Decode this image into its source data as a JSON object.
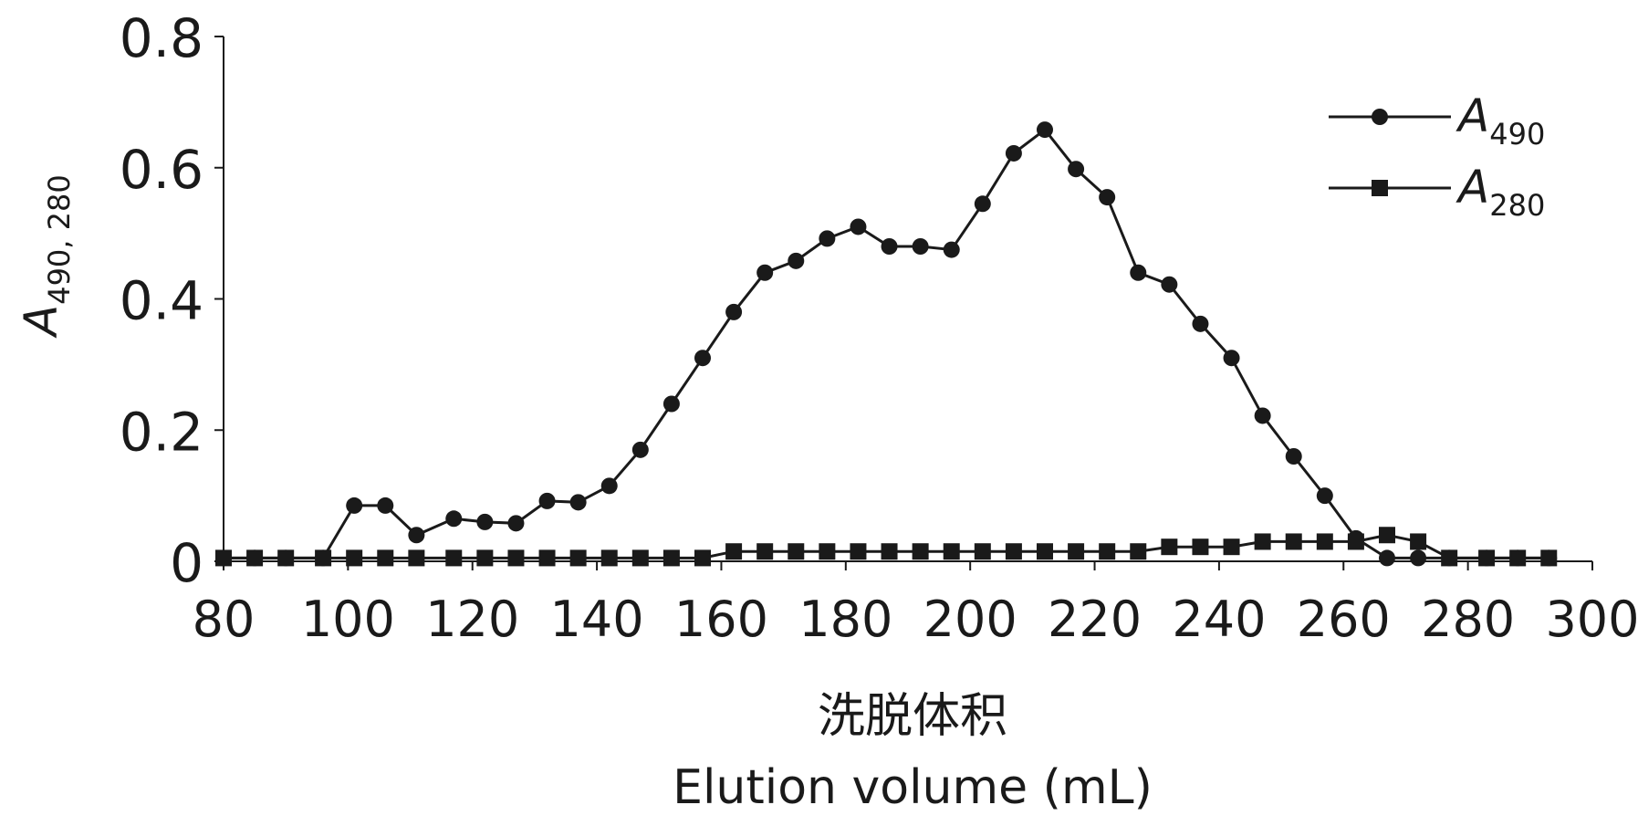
{
  "chart_data": {
    "type": "line",
    "title": "",
    "ylabel": {
      "main": "A",
      "sub": "490, 280"
    },
    "xlabel_cn": "洗脱体积",
    "xlabel_en": "Elution volume (mL)",
    "xlim": [
      80,
      300
    ],
    "ylim": [
      0,
      0.8
    ],
    "xticks": [
      "80",
      "100",
      "120",
      "140",
      "160",
      "180",
      "200",
      "220",
      "240",
      "260",
      "280",
      "300"
    ],
    "yticks": [
      "0",
      "0.2",
      "0.4",
      "0.6",
      "0.8"
    ],
    "grid": false,
    "legend_position": "top-right",
    "series": [
      {
        "name": "A490",
        "legend_main": "A",
        "legend_sub": "490",
        "marker": "circle",
        "x": [
          80,
          85,
          90,
          96,
          101,
          106,
          111,
          117,
          122,
          127,
          132,
          137,
          142,
          147,
          152,
          157,
          162,
          167,
          172,
          177,
          182,
          187,
          192,
          197,
          202,
          207,
          212,
          217,
          222,
          227,
          232,
          237,
          242,
          247,
          252,
          257,
          262,
          267,
          272,
          277,
          283,
          288,
          293
        ],
        "y": [
          0.005,
          0.005,
          0.005,
          0.005,
          0.085,
          0.085,
          0.04,
          0.065,
          0.06,
          0.058,
          0.092,
          0.09,
          0.115,
          0.17,
          0.24,
          0.31,
          0.38,
          0.44,
          0.458,
          0.492,
          0.51,
          0.48,
          0.48,
          0.475,
          0.545,
          0.622,
          0.658,
          0.598,
          0.555,
          0.44,
          0.422,
          0.362,
          0.31,
          0.222,
          0.16,
          0.1,
          0.035,
          0.005,
          0.005,
          0.005,
          0.005,
          0.005,
          0.005
        ]
      },
      {
        "name": "A280",
        "legend_main": "A",
        "legend_sub": "280",
        "marker": "square",
        "x": [
          80,
          85,
          90,
          96,
          101,
          106,
          111,
          117,
          122,
          127,
          132,
          137,
          142,
          147,
          152,
          157,
          162,
          167,
          172,
          177,
          182,
          187,
          192,
          197,
          202,
          207,
          212,
          217,
          222,
          227,
          232,
          237,
          242,
          247,
          252,
          257,
          262,
          267,
          272,
          277,
          283,
          288,
          293
        ],
        "y": [
          0.005,
          0.005,
          0.005,
          0.005,
          0.005,
          0.005,
          0.005,
          0.005,
          0.005,
          0.005,
          0.005,
          0.005,
          0.005,
          0.005,
          0.005,
          0.005,
          0.015,
          0.015,
          0.015,
          0.015,
          0.015,
          0.015,
          0.015,
          0.015,
          0.015,
          0.015,
          0.015,
          0.015,
          0.015,
          0.015,
          0.022,
          0.022,
          0.022,
          0.03,
          0.03,
          0.03,
          0.03,
          0.04,
          0.03,
          0.005,
          0.005,
          0.005,
          0.005
        ]
      }
    ]
  }
}
